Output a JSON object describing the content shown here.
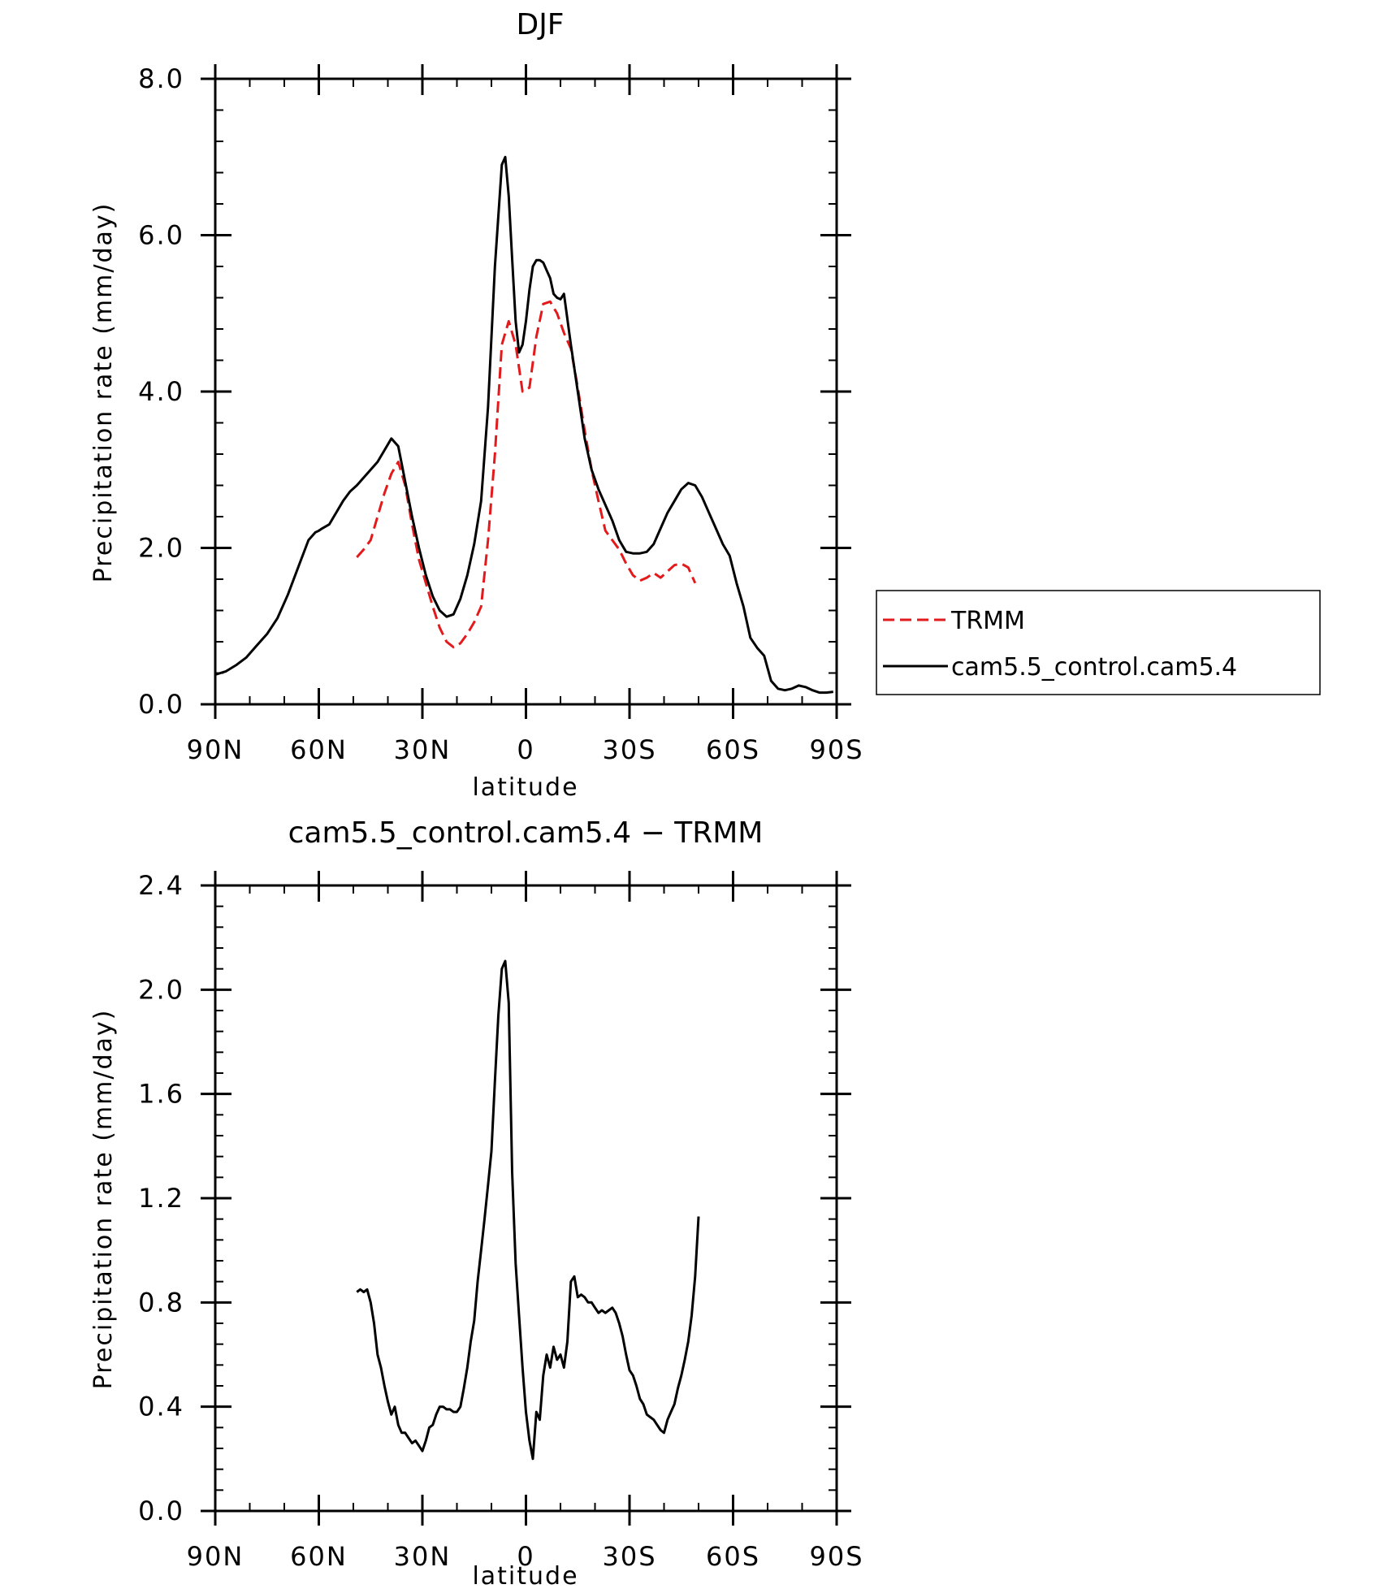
{
  "chart_data": [
    {
      "type": "line",
      "title": "DJF",
      "xlabel": "latitude",
      "ylabel": "Precipitation rate (mm/day)",
      "xlim": [
        90,
        -90
      ],
      "ylim": [
        0,
        8
      ],
      "x_ticks": [
        {
          "value": 90,
          "label": "90N"
        },
        {
          "value": 60,
          "label": "60N"
        },
        {
          "value": 30,
          "label": "30N"
        },
        {
          "value": 0,
          "label": "0"
        },
        {
          "value": -30,
          "label": "30S"
        },
        {
          "value": -60,
          "label": "60S"
        },
        {
          "value": -90,
          "label": "90S"
        }
      ],
      "y_ticks": [
        {
          "value": 0,
          "label": "0.0"
        },
        {
          "value": 2,
          "label": "2.0"
        },
        {
          "value": 4,
          "label": "4.0"
        },
        {
          "value": 6,
          "label": "6.0"
        },
        {
          "value": 8,
          "label": "8.0"
        }
      ],
      "legend": {
        "placement": "right",
        "entries": [
          {
            "label": "TRMM",
            "color": "#e31a1c",
            "dash": "dashed"
          },
          {
            "label": "cam5.5_control.cam5.4",
            "color": "#000000",
            "dash": "solid"
          }
        ]
      },
      "series": [
        {
          "name": "TRMM",
          "color": "#e31a1c",
          "dash": "dashed",
          "x": [
            49,
            47,
            45,
            43,
            41,
            39,
            37,
            35,
            33,
            31,
            29,
            27,
            25,
            23,
            21,
            19,
            17,
            15,
            13,
            11,
            9,
            7,
            5,
            3,
            1,
            -1,
            -3,
            -5,
            -7,
            -9,
            -11,
            -13,
            -15,
            -17,
            -19,
            -21,
            -23,
            -25,
            -27,
            -29,
            -31,
            -33,
            -35,
            -37,
            -39,
            -41,
            -43,
            -45,
            -47,
            -49
          ],
          "y": [
            1.88,
            1.98,
            2.1,
            2.4,
            2.7,
            2.95,
            3.1,
            2.8,
            2.3,
            1.85,
            1.55,
            1.25,
            0.98,
            0.8,
            0.73,
            0.78,
            0.9,
            1.05,
            1.25,
            2.1,
            3.2,
            4.6,
            4.9,
            4.6,
            4.0,
            4.05,
            4.7,
            5.12,
            5.15,
            5.0,
            4.75,
            4.55,
            4.05,
            3.5,
            3.0,
            2.6,
            2.22,
            2.1,
            1.98,
            1.8,
            1.65,
            1.58,
            1.62,
            1.68,
            1.62,
            1.7,
            1.78,
            1.8,
            1.75,
            1.55
          ]
        },
        {
          "name": "cam5.5_control.cam5.4",
          "color": "#000000",
          "dash": "solid",
          "x": [
            90,
            87,
            84,
            81,
            78,
            75,
            72,
            69,
            66,
            63,
            61,
            60,
            59,
            57,
            55,
            53,
            51,
            49,
            47,
            45,
            43,
            41,
            39,
            37,
            35,
            33,
            31,
            29,
            27,
            25,
            23,
            21,
            19,
            17,
            15,
            13,
            11,
            9,
            7,
            6,
            5,
            4,
            3,
            2,
            1,
            0,
            -1,
            -2,
            -3,
            -4,
            -5,
            -6,
            -7,
            -8,
            -9,
            -10,
            -11,
            -13,
            -15,
            -17,
            -19,
            -21,
            -23,
            -25,
            -27,
            -29,
            -31,
            -33,
            -35,
            -37,
            -39,
            -41,
            -43,
            -45,
            -47,
            -49,
            -51,
            -53,
            -55,
            -57,
            -59,
            -61,
            -63,
            -65,
            -67,
            -69,
            -71,
            -73,
            -75,
            -77,
            -79,
            -81,
            -83,
            -85,
            -87,
            -89
          ],
          "y": [
            0.38,
            0.42,
            0.5,
            0.6,
            0.75,
            0.9,
            1.1,
            1.4,
            1.75,
            2.1,
            2.2,
            2.22,
            2.25,
            2.3,
            2.45,
            2.6,
            2.72,
            2.8,
            2.9,
            3.0,
            3.1,
            3.25,
            3.4,
            3.3,
            2.85,
            2.4,
            2.0,
            1.65,
            1.38,
            1.2,
            1.12,
            1.15,
            1.35,
            1.65,
            2.05,
            2.6,
            3.8,
            5.6,
            6.9,
            7.0,
            6.5,
            5.7,
            4.9,
            4.5,
            4.6,
            4.9,
            5.3,
            5.6,
            5.68,
            5.68,
            5.65,
            5.55,
            5.45,
            5.25,
            5.2,
            5.18,
            5.25,
            4.6,
            4.0,
            3.4,
            3.0,
            2.75,
            2.55,
            2.35,
            2.1,
            1.95,
            1.93,
            1.93,
            1.95,
            2.05,
            2.25,
            2.45,
            2.6,
            2.75,
            2.83,
            2.8,
            2.65,
            2.45,
            2.25,
            2.05,
            1.9,
            1.55,
            1.25,
            0.85,
            0.72,
            0.62,
            0.3,
            0.2,
            0.18,
            0.2,
            0.24,
            0.22,
            0.18,
            0.15,
            0.15,
            0.16
          ]
        }
      ]
    },
    {
      "type": "line",
      "title": "cam5.5_control.cam5.4 − TRMM",
      "xlabel": "latitude",
      "ylabel": "Precipitation rate (mm/day)",
      "xlim": [
        90,
        -90
      ],
      "ylim": [
        0,
        2.4
      ],
      "x_ticks": [
        {
          "value": 90,
          "label": "90N"
        },
        {
          "value": 60,
          "label": "60N"
        },
        {
          "value": 30,
          "label": "30N"
        },
        {
          "value": 0,
          "label": "0"
        },
        {
          "value": -30,
          "label": "30S"
        },
        {
          "value": -60,
          "label": "60S"
        },
        {
          "value": -90,
          "label": "90S"
        }
      ],
      "y_ticks": [
        {
          "value": 0,
          "label": "0.0"
        },
        {
          "value": 0.4,
          "label": "0.4"
        },
        {
          "value": 0.8,
          "label": "0.8"
        },
        {
          "value": 1.2,
          "label": "1.2"
        },
        {
          "value": 1.6,
          "label": "1.6"
        },
        {
          "value": 2.0,
          "label": "2.0"
        },
        {
          "value": 2.4,
          "label": "2.4"
        }
      ],
      "series": [
        {
          "name": "cam5.5_control.cam5.4 − TRMM",
          "color": "#000000",
          "dash": "solid",
          "x": [
            49,
            48,
            47,
            46,
            45,
            44,
            43,
            42,
            41,
            40,
            39,
            38,
            37,
            36,
            35,
            34,
            33,
            32,
            31,
            30,
            29,
            28,
            27,
            26,
            25,
            24,
            23,
            22,
            21,
            20,
            19,
            18,
            17,
            16,
            15,
            14,
            13,
            12,
            11,
            10,
            9,
            8,
            7,
            6,
            5,
            4,
            3,
            2,
            1,
            0,
            -1,
            -2,
            -3,
            -4,
            -5,
            -6,
            -7,
            -8,
            -9,
            -10,
            -11,
            -12,
            -13,
            -14,
            -15,
            -16,
            -17,
            -18,
            -19,
            -20,
            -21,
            -22,
            -23,
            -24,
            -25,
            -26,
            -27,
            -28,
            -29,
            -30,
            -31,
            -32,
            -33,
            -34,
            -35,
            -36,
            -37,
            -38,
            -39,
            -40,
            -41,
            -42,
            -43,
            -44,
            -45,
            -46,
            -47,
            -48,
            -49,
            -50
          ],
          "y": [
            0.84,
            0.85,
            0.84,
            0.85,
            0.8,
            0.72,
            0.6,
            0.55,
            0.48,
            0.42,
            0.37,
            0.4,
            0.33,
            0.3,
            0.3,
            0.28,
            0.26,
            0.27,
            0.25,
            0.23,
            0.27,
            0.32,
            0.33,
            0.37,
            0.4,
            0.4,
            0.39,
            0.39,
            0.38,
            0.38,
            0.4,
            0.47,
            0.55,
            0.65,
            0.73,
            0.88,
            1.0,
            1.12,
            1.25,
            1.38,
            1.65,
            1.9,
            2.08,
            2.11,
            1.95,
            1.3,
            0.95,
            0.75,
            0.55,
            0.38,
            0.27,
            0.2,
            0.38,
            0.35,
            0.52,
            0.6,
            0.55,
            0.63,
            0.58,
            0.6,
            0.55,
            0.65,
            0.88,
            0.9,
            0.82,
            0.83,
            0.82,
            0.8,
            0.8,
            0.78,
            0.76,
            0.77,
            0.76,
            0.77,
            0.78,
            0.76,
            0.72,
            0.67,
            0.6,
            0.54,
            0.52,
            0.48,
            0.43,
            0.41,
            0.37,
            0.36,
            0.35,
            0.33,
            0.31,
            0.3,
            0.35,
            0.38,
            0.41,
            0.47,
            0.52,
            0.58,
            0.65,
            0.75,
            0.9,
            1.13
          ]
        }
      ]
    }
  ]
}
